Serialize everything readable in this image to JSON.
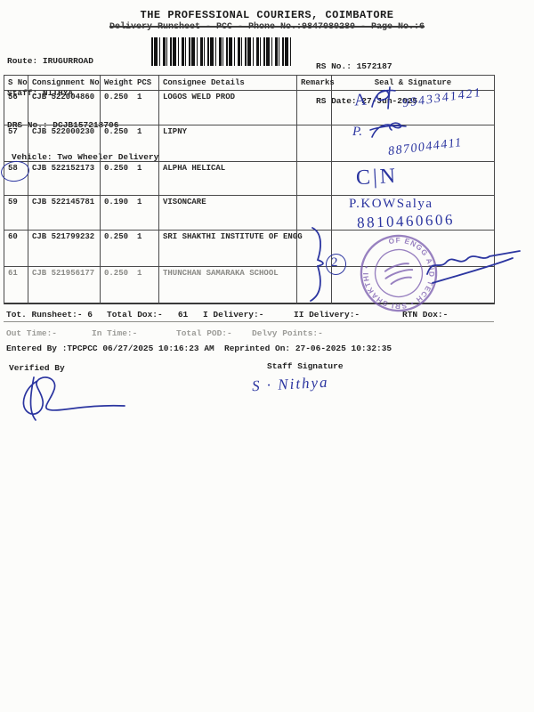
{
  "header": {
    "title": "THE PROFESSIONAL COURIERS, COIMBATORE",
    "subtitle": "Delivery Runsheet - PCC - Phone No.:9847080280 - Page No.:6",
    "route": "Route: IRUGURROAD",
    "staff": "Staff: NITHYA",
    "drs_no": "DRS No.: DCJB157218706",
    "vehicle": "Vehicle: Two Wheeler Delivery",
    "rs_no": "RS No.: 1572187",
    "rs_date": "RS Date: 27-Jun-2025",
    "barcode_icon": "barcode"
  },
  "table": {
    "columns": [
      "S No",
      "Consignment No",
      "Weight",
      "PCS",
      "Consignee Details",
      "Remarks",
      "Seal & Signature"
    ],
    "rows": [
      {
        "s_no": "56",
        "consignment_no": "CJB 522004860",
        "weight": "0.250",
        "pcs": "1",
        "consignee": "LOGOS WELD PROD",
        "remarks": ""
      },
      {
        "s_no": "57",
        "consignment_no": "CJB 522000230",
        "weight": "0.250",
        "pcs": "1",
        "consignee": "LIPNY",
        "remarks": ""
      },
      {
        "s_no": "58",
        "consignment_no": "CJB 522152173",
        "weight": "0.250",
        "pcs": "1",
        "consignee": "ALPHA HELICAL",
        "remarks": ""
      },
      {
        "s_no": "59",
        "consignment_no": "CJB 522145781",
        "weight": "0.190",
        "pcs": "1",
        "consignee": "VISONCARE",
        "remarks": ""
      },
      {
        "s_no": "60",
        "consignment_no": "CJB 521799232",
        "weight": "0.250",
        "pcs": "1",
        "consignee": "SRI SHAKTHI INSTITUTE OF ENGG",
        "remarks": ""
      },
      {
        "s_no": "61",
        "consignment_no": "CJB 521956177",
        "weight": "0.250",
        "pcs": "1",
        "consignee": "THUNCHAN SAMARAKA SCHOOL",
        "remarks": ""
      }
    ]
  },
  "annotations": {
    "ink_color": "#2b35a0",
    "stamp_color": "#7d5fb0",
    "row56_initial": "A",
    "row56_phone": "9943341421",
    "row57_initial": "P.",
    "row57_phone": "8870044411",
    "row58_note": "C|N",
    "row59_name": "P.KOWSalya",
    "row59_phone": "8810460606",
    "row60_brace_count": "2",
    "stamp_ring_text": "OF ENGG AND TECH • SRI SHAKTHI •",
    "staff_signature_name": "S · Nithya"
  },
  "totals": {
    "runsheet": "Tot. Runsheet:- 6",
    "total_dox": "Total Dox:-   61",
    "i_delivery": "I Delivery:-",
    "ii_delivery": "II Delivery:-",
    "rtn_dox": "RTN Dox:-"
  },
  "times": {
    "out_time": "Out Time:-",
    "in_time": "In Time:-",
    "total_pod": "Total POD:-",
    "delvy_points": "Delvy Points:-"
  },
  "footer": {
    "entered_by": "Entered By :TPCPCC 06/27/2025 10:16:23 AM",
    "reprinted_on": "Reprinted On: 27-06-2025 10:32:35",
    "verified_by_label": "Verified By",
    "staff_signature_label": "Staff Signature"
  }
}
